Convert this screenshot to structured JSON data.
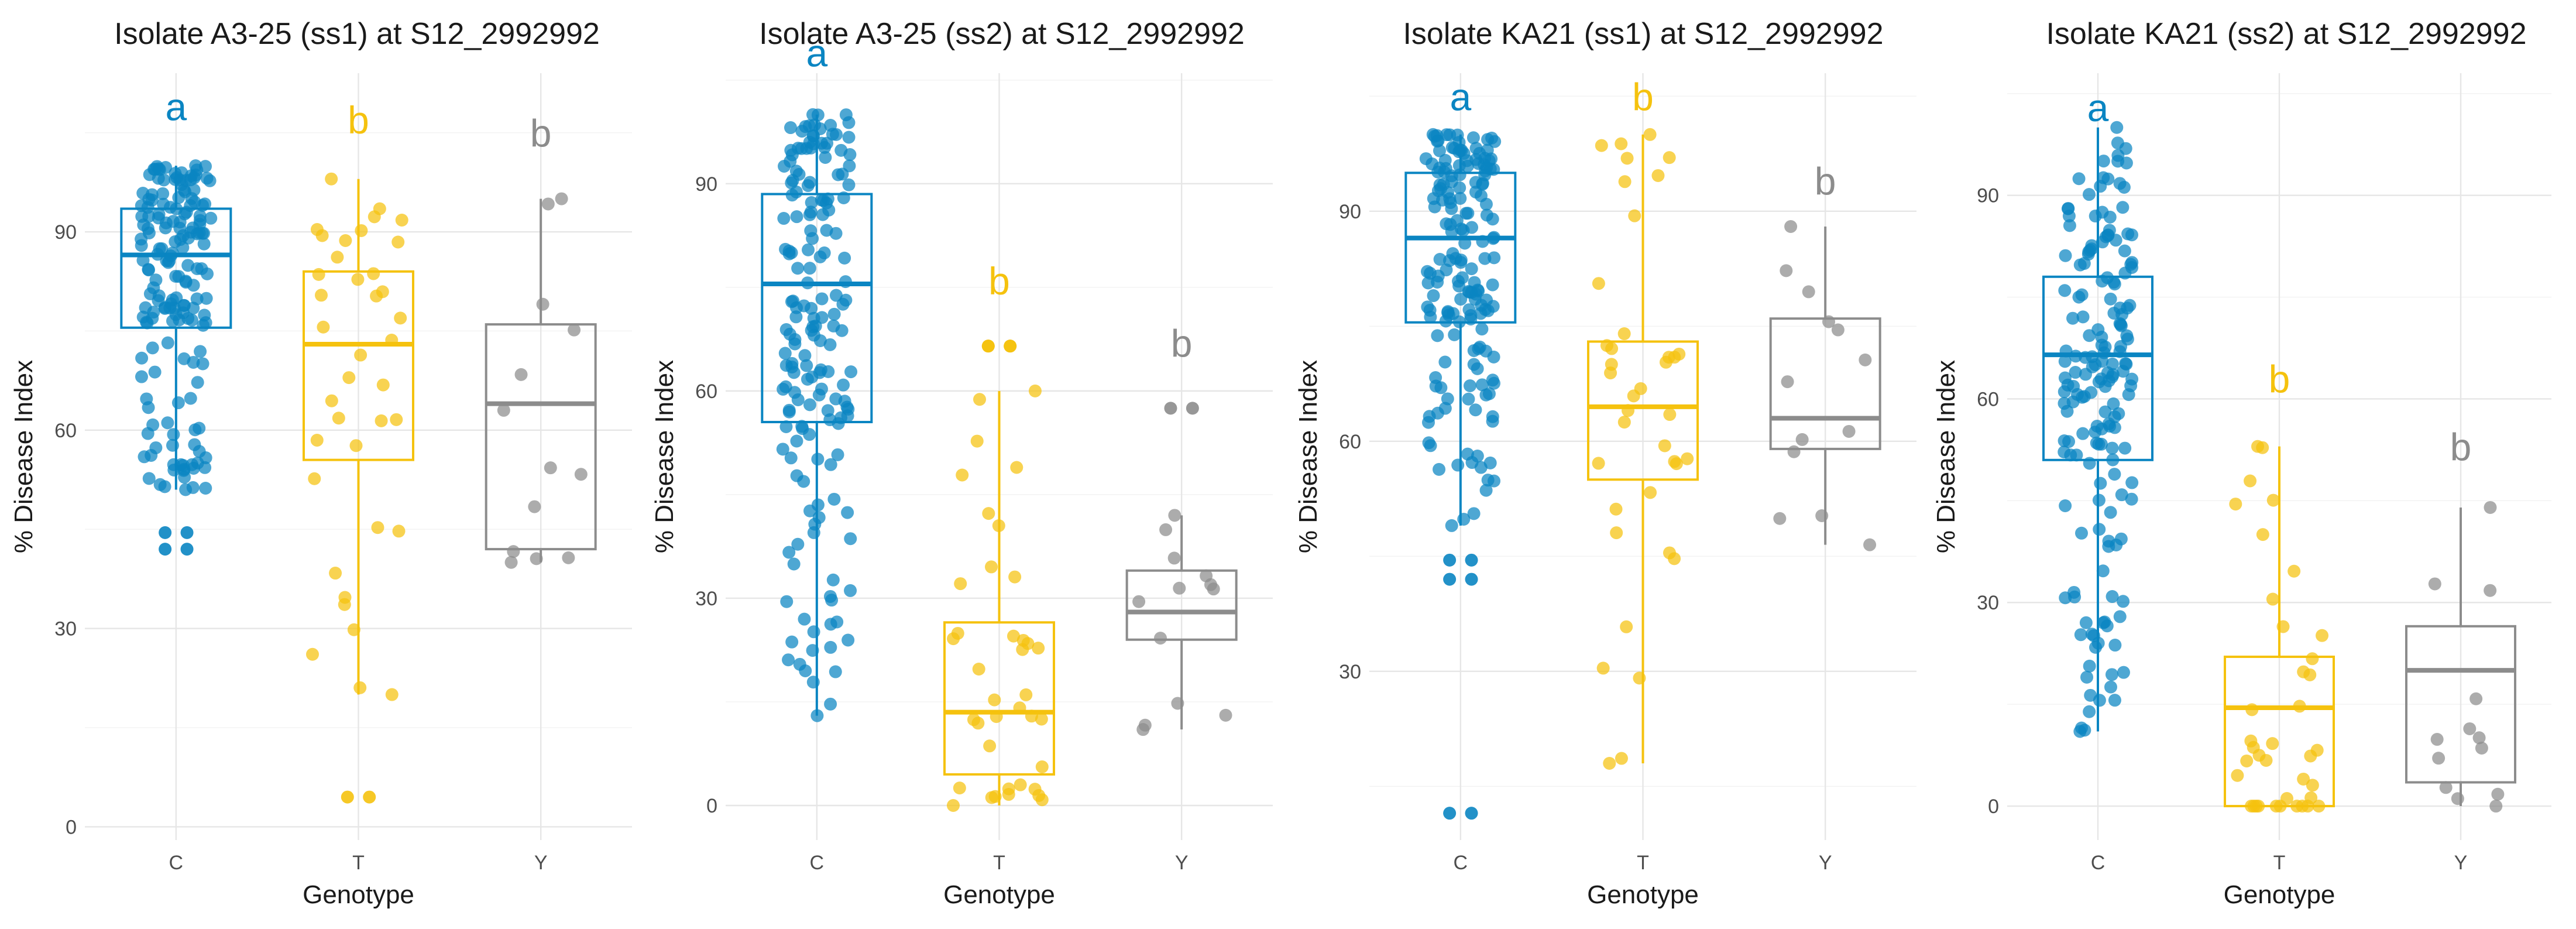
{
  "colors": {
    "C": "#0A85C2",
    "T": "#F5C20E",
    "Y": "#8C8C8C"
  },
  "chart_data": [
    {
      "type": "box",
      "title": "Isolate A3-25 (ss1) at S12_2992992",
      "xlabel": "Genotype",
      "ylabel": "% Disease Index",
      "ylim": [
        -2,
        114
      ],
      "yticks": [
        0,
        30,
        60,
        90
      ],
      "categories": [
        "C",
        "T",
        "Y"
      ],
      "boxes": [
        {
          "q1": 75.5,
          "median": 86.5,
          "q3": 93.5,
          "whisker_low": 51,
          "whisker_high": 100
        },
        {
          "q1": 55.5,
          "median": 73,
          "q3": 84,
          "whisker_low": 20,
          "whisker_high": 98
        },
        {
          "q1": 42,
          "median": 64,
          "q3": 76,
          "whisker_low": 40,
          "whisker_high": 95
        }
      ],
      "letters": [
        "a",
        "b",
        "b"
      ],
      "letter_y": [
        109,
        107,
        105
      ],
      "n_points": [
        170,
        36,
        11
      ],
      "outliers": [
        [
          42,
          42,
          44.5,
          44.5
        ],
        [
          4.5,
          4.5
        ],
        []
      ]
    },
    {
      "type": "box",
      "title": "Isolate A3-25 (ss2) at S12_2992992",
      "xlabel": "Genotype",
      "ylabel": "% Disease Index",
      "ylim": [
        -5,
        106
      ],
      "yticks": [
        0,
        30,
        60,
        90
      ],
      "categories": [
        "C",
        "T",
        "Y"
      ],
      "boxes": [
        {
          "q1": 55.5,
          "median": 75.5,
          "q3": 88.5,
          "whisker_low": 13,
          "whisker_high": 100
        },
        {
          "q1": 4.5,
          "median": 13.5,
          "q3": 26.5,
          "whisker_low": 0,
          "whisker_high": 60
        },
        {
          "q1": 24,
          "median": 28,
          "q3": 34,
          "whisker_low": 11,
          "whisker_high": 42
        }
      ],
      "letters": [
        "a",
        "b",
        "b"
      ],
      "letter_y": [
        109,
        76,
        67
      ],
      "n_points": [
        170,
        36,
        11
      ],
      "outliers": [
        [],
        [
          66.5,
          66.5,
          66.5,
          66.5
        ],
        [
          57.5,
          57.5
        ]
      ]
    },
    {
      "type": "box",
      "title": "Isolate KA21 (ss1) at S12_2992992",
      "xlabel": "Genotype",
      "ylabel": "% Disease Index",
      "ylim": [
        8,
        108
      ],
      "yticks": [
        30,
        60,
        90
      ],
      "categories": [
        "C",
        "T",
        "Y"
      ],
      "boxes": [
        {
          "q1": 75.5,
          "median": 86.5,
          "q3": 95,
          "whisker_low": 49,
          "whisker_high": 100
        },
        {
          "q1": 55,
          "median": 64.5,
          "q3": 73,
          "whisker_low": 18,
          "whisker_high": 100
        },
        {
          "q1": 59,
          "median": 63,
          "q3": 76,
          "whisker_low": 46.5,
          "whisker_high": 88
        }
      ],
      "letters": [
        "a",
        "b",
        "b"
      ],
      "letter_y": [
        105,
        105,
        94
      ],
      "n_points": [
        170,
        36,
        11
      ],
      "outliers": [
        [
          11.5,
          11.5,
          42,
          42,
          44.5,
          44.5
        ],
        [],
        []
      ]
    },
    {
      "type": "box",
      "title": "Isolate KA21 (ss2) at S12_2992992",
      "xlabel": "Genotype",
      "ylabel": "% Disease Index",
      "ylim": [
        -5,
        108
      ],
      "yticks": [
        0,
        30,
        60,
        90
      ],
      "categories": [
        "C",
        "T",
        "Y"
      ],
      "boxes": [
        {
          "q1": 51,
          "median": 66.5,
          "q3": 78,
          "whisker_low": 11,
          "whisker_high": 100
        },
        {
          "q1": 0,
          "median": 14.5,
          "q3": 22,
          "whisker_low": 0,
          "whisker_high": 53
        },
        {
          "q1": 3.5,
          "median": 20,
          "q3": 26.5,
          "whisker_low": 0,
          "whisker_high": 44
        }
      ],
      "letters": [
        "a",
        "b",
        "b"
      ],
      "letter_y": [
        103,
        63,
        53
      ],
      "n_points": [
        170,
        36,
        11
      ],
      "outliers": [
        [],
        [],
        []
      ]
    }
  ]
}
